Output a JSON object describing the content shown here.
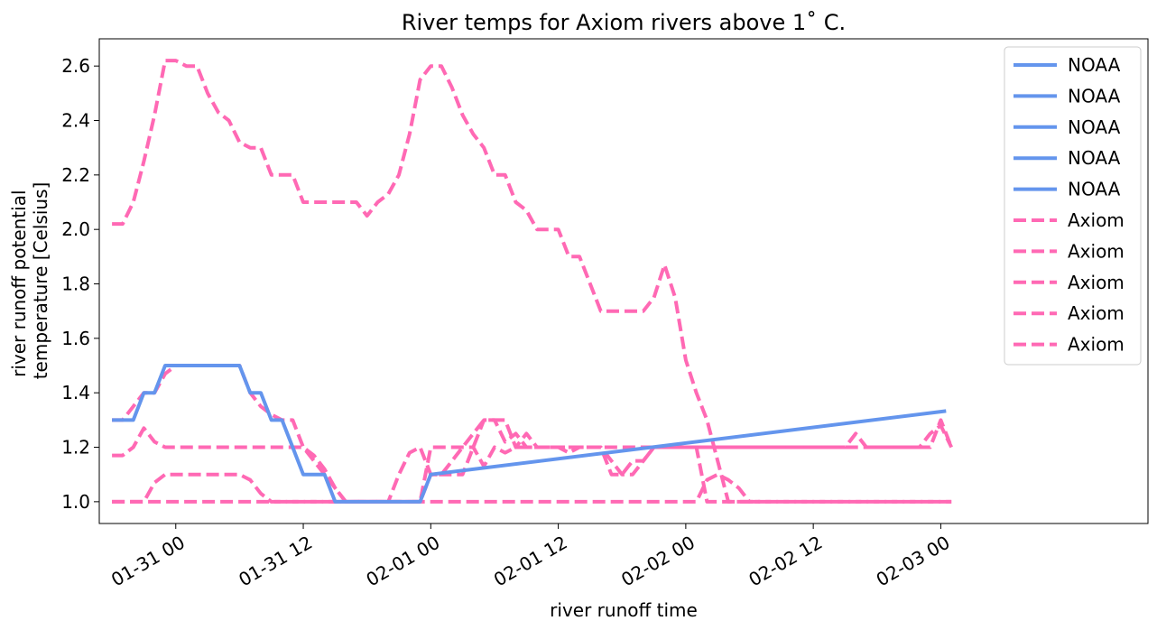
{
  "chart_data": {
    "type": "line",
    "title": "River temps for Axiom rivers above 1˚ C.",
    "xlabel": "river runoff time",
    "ylabel_lines": [
      "river runoff potential",
      "temperature [Celsius]"
    ],
    "x_unit": "hours since 01-31 00",
    "xlim": [
      -7.2,
      91.5
    ],
    "ylim": [
      0.92,
      2.7
    ],
    "x_ticks": [
      {
        "x": 0,
        "label": "01-31 00"
      },
      {
        "x": 12,
        "label": "01-31 12"
      },
      {
        "x": 24,
        "label": "02-01 00"
      },
      {
        "x": 36,
        "label": "02-01 12"
      },
      {
        "x": 48,
        "label": "02-02 00"
      },
      {
        "x": 60,
        "label": "02-02 12"
      },
      {
        "x": 72,
        "label": "02-03 00"
      }
    ],
    "y_ticks": [
      1.0,
      1.2,
      1.4,
      1.6,
      1.8,
      2.0,
      2.2,
      2.4,
      2.6
    ],
    "y_tick_labels": [
      "1.0",
      "1.2",
      "1.4",
      "1.6",
      "1.8",
      "2.0",
      "2.2",
      "2.4",
      "2.6"
    ],
    "grid": false,
    "legend_position": "upper right",
    "colors": {
      "NOAA": "#6495ED",
      "Axiom": "#FF69B4"
    },
    "series": [
      {
        "name": "NOAA",
        "style": "solid",
        "color": "#6495ED",
        "x": [
          -6,
          -4,
          -3,
          -2,
          -1,
          6,
          7,
          8,
          9,
          10,
          11,
          12,
          13,
          14,
          15,
          16,
          20,
          22,
          23,
          24,
          72.5
        ],
        "y": [
          1.3,
          1.3,
          1.4,
          1.4,
          1.5,
          1.5,
          1.4,
          1.4,
          1.3,
          1.3,
          1.2,
          1.1,
          1.1,
          1.1,
          1.0,
          1.0,
          1.0,
          1.0,
          1.0,
          1.1,
          1.333
        ]
      },
      {
        "name": "NOAA",
        "style": "solid",
        "color": "#6495ED",
        "x": [],
        "y": []
      },
      {
        "name": "NOAA",
        "style": "solid",
        "color": "#6495ED",
        "x": [],
        "y": []
      },
      {
        "name": "NOAA",
        "style": "solid",
        "color": "#6495ED",
        "x": [],
        "y": []
      },
      {
        "name": "NOAA",
        "style": "solid",
        "color": "#6495ED",
        "x": [],
        "y": []
      },
      {
        "name": "Axiom",
        "style": "dashed",
        "color": "#FF69B4",
        "x": [
          -6,
          -5,
          -4,
          -3,
          -2,
          -1,
          0,
          1,
          2,
          3,
          4,
          5,
          6,
          7,
          8,
          9,
          10,
          11,
          12,
          13,
          14,
          15,
          16,
          17,
          18,
          19,
          20,
          21,
          22,
          23,
          24,
          25,
          26,
          27,
          28,
          29,
          30,
          31,
          32,
          33,
          34,
          35,
          36,
          37,
          38,
          39,
          40,
          41,
          42,
          43,
          44,
          45,
          46,
          47,
          48,
          49,
          50,
          51,
          52,
          53,
          54,
          55
        ],
        "y": [
          2.02,
          2.02,
          2.1,
          2.25,
          2.42,
          2.62,
          2.62,
          2.6,
          2.6,
          2.5,
          2.43,
          2.4,
          2.32,
          2.3,
          2.3,
          2.2,
          2.2,
          2.2,
          2.1,
          2.1,
          2.1,
          2.1,
          2.1,
          2.1,
          2.05,
          2.1,
          2.13,
          2.2,
          2.35,
          2.55,
          2.6,
          2.6,
          2.52,
          2.42,
          2.35,
          2.3,
          2.2,
          2.2,
          2.1,
          2.07,
          2.0,
          2.0,
          2.0,
          1.9,
          1.9,
          1.8,
          1.7,
          1.7,
          1.7,
          1.7,
          1.7,
          1.75,
          1.87,
          1.75,
          1.52,
          1.4,
          1.3,
          1.15,
          1.0,
          1.0,
          1.0,
          1.0
        ]
      },
      {
        "name": "Axiom",
        "style": "dashed",
        "color": "#FF69B4",
        "x": [
          -6,
          -5,
          -4,
          -3,
          -2,
          -1,
          0,
          1,
          2,
          3,
          4,
          5,
          6,
          7,
          8,
          9,
          10,
          11,
          12,
          13,
          14,
          15,
          16,
          17,
          18,
          19,
          20,
          21,
          22,
          23,
          24,
          25,
          26,
          27,
          28,
          29,
          30,
          31,
          32,
          33,
          34,
          35,
          36,
          37,
          38,
          39,
          40,
          41,
          42,
          43,
          44,
          45,
          46,
          47,
          48,
          49,
          50,
          51,
          52,
          53,
          54,
          55,
          56,
          57,
          58,
          59,
          60,
          61,
          62,
          63,
          64,
          65,
          66,
          67,
          68,
          69,
          70,
          71,
          72,
          73
        ],
        "y": [
          1.3,
          1.3,
          1.35,
          1.4,
          1.4,
          1.47,
          1.5,
          1.5,
          1.5,
          1.5,
          1.5,
          1.5,
          1.5,
          1.4,
          1.35,
          1.32,
          1.3,
          1.3,
          1.2,
          1.15,
          1.1,
          1.05,
          1.0,
          1.0,
          1.0,
          1.0,
          1.0,
          1.0,
          1.0,
          1.0,
          1.1,
          1.1,
          1.15,
          1.2,
          1.25,
          1.3,
          1.3,
          1.22,
          1.25,
          1.2,
          1.2,
          1.2,
          1.2,
          1.18,
          1.2,
          1.2,
          1.2,
          1.15,
          1.1,
          1.1,
          1.15,
          1.2,
          1.2,
          1.2,
          1.2,
          1.2,
          1.2,
          1.2,
          1.2,
          1.2,
          1.2,
          1.2,
          1.2,
          1.2,
          1.2,
          1.2,
          1.2,
          1.2,
          1.2,
          1.2,
          1.25,
          1.2,
          1.2,
          1.2,
          1.2,
          1.2,
          1.2,
          1.25,
          1.28,
          1.2
        ]
      },
      {
        "name": "Axiom",
        "style": "dashed",
        "color": "#FF69B4",
        "x": [
          -6,
          -5,
          -4,
          -3,
          -2,
          -1,
          0,
          1,
          2,
          3,
          4,
          5,
          6,
          7,
          8,
          9,
          10,
          11,
          12,
          13,
          14,
          15,
          16,
          17,
          18,
          19,
          20,
          21,
          22,
          23,
          24,
          25,
          26,
          27,
          28,
          29,
          30,
          31,
          32,
          33,
          34,
          35,
          36,
          37,
          38,
          39,
          40,
          41,
          42,
          43,
          44,
          45,
          46,
          47,
          48,
          49,
          50,
          51,
          52,
          53,
          54,
          55,
          56,
          57,
          58,
          59,
          60,
          61,
          62,
          63,
          64,
          65,
          66,
          67,
          68,
          69,
          70,
          71,
          72,
          73
        ],
        "y": [
          1.17,
          1.17,
          1.2,
          1.27,
          1.22,
          1.2,
          1.2,
          1.2,
          1.2,
          1.2,
          1.2,
          1.2,
          1.2,
          1.2,
          1.2,
          1.2,
          1.2,
          1.2,
          1.2,
          1.17,
          1.12,
          1.05,
          1.0,
          1.0,
          1.0,
          1.0,
          1.0,
          1.0,
          1.0,
          1.0,
          1.2,
          1.2,
          1.2,
          1.2,
          1.2,
          1.13,
          1.2,
          1.18,
          1.2,
          1.2,
          1.2,
          1.2,
          1.2,
          1.2,
          1.2,
          1.2,
          1.2,
          1.1,
          1.1,
          1.15,
          1.15,
          1.2,
          1.2,
          1.2,
          1.2,
          1.2,
          1.2,
          1.2,
          1.2,
          1.2,
          1.2,
          1.2,
          1.2,
          1.2,
          1.2,
          1.2,
          1.2,
          1.2,
          1.2,
          1.2,
          1.2,
          1.2,
          1.2,
          1.2,
          1.2,
          1.2,
          1.2,
          1.2,
          1.3,
          1.2
        ]
      },
      {
        "name": "Axiom",
        "style": "dashed",
        "color": "#FF69B4",
        "x": [
          -6,
          -5,
          -4,
          -3,
          -2,
          -1,
          0,
          1,
          2,
          3,
          4,
          5,
          6,
          7,
          8,
          9,
          10,
          11,
          12,
          13,
          14,
          15,
          16,
          17,
          18,
          19,
          20,
          21,
          22,
          23,
          24,
          25,
          26,
          27,
          28,
          29,
          30,
          31,
          32,
          33,
          34,
          35,
          36,
          37,
          38,
          39,
          40,
          41,
          42,
          43,
          44,
          45,
          46,
          47,
          48,
          49,
          50,
          51,
          52,
          53,
          54,
          55,
          56,
          57,
          58,
          59,
          60,
          61,
          62,
          63,
          64,
          65,
          66,
          67,
          68,
          69,
          70,
          71,
          72,
          73
        ],
        "y": [
          1.0,
          1.0,
          1.0,
          1.0,
          1.07,
          1.1,
          1.1,
          1.1,
          1.1,
          1.1,
          1.1,
          1.1,
          1.1,
          1.08,
          1.03,
          1.0,
          1.0,
          1.0,
          1.0,
          1.0,
          1.0,
          1.0,
          1.0,
          1.0,
          1.0,
          1.0,
          1.0,
          1.0,
          1.0,
          1.0,
          1.0,
          1.0,
          1.0,
          1.0,
          1.0,
          1.0,
          1.0,
          1.0,
          1.0,
          1.0,
          1.0,
          1.0,
          1.0,
          1.0,
          1.0,
          1.0,
          1.0,
          1.0,
          1.0,
          1.0,
          1.0,
          1.0,
          1.0,
          1.0,
          1.0,
          1.0,
          1.08,
          1.1,
          1.08,
          1.05,
          1.0,
          1.0,
          1.0,
          1.0,
          1.0,
          1.0,
          1.0,
          1.0,
          1.0,
          1.0,
          1.0,
          1.0,
          1.0,
          1.0,
          1.0,
          1.0,
          1.0,
          1.0,
          1.0,
          1.0
        ]
      },
      {
        "name": "Axiom",
        "style": "dashed",
        "color": "#FF69B4",
        "x": [
          -6,
          -5,
          -4,
          -3,
          -2,
          -1,
          0,
          1,
          2,
          3,
          4,
          5,
          6,
          7,
          8,
          9,
          10,
          11,
          12,
          13,
          14,
          15,
          16,
          17,
          18,
          19,
          20,
          21,
          22,
          23,
          24,
          25,
          26,
          27,
          28,
          29,
          30,
          31,
          32,
          33,
          34,
          35,
          36,
          37,
          38,
          39,
          40,
          41,
          42,
          43,
          44,
          45,
          46,
          47,
          48,
          49,
          50,
          51,
          52,
          53,
          54,
          55,
          56,
          57,
          58,
          59,
          60,
          61,
          62,
          63,
          64,
          65,
          66,
          67,
          68,
          69,
          70,
          71,
          72,
          73
        ],
        "y": [
          1.0,
          1.0,
          1.0,
          1.0,
          1.0,
          1.0,
          1.0,
          1.0,
          1.0,
          1.0,
          1.0,
          1.0,
          1.0,
          1.0,
          1.0,
          1.0,
          1.0,
          1.0,
          1.0,
          1.0,
          1.0,
          1.0,
          1.0,
          1.0,
          1.0,
          1.0,
          1.0,
          1.1,
          1.18,
          1.2,
          1.1,
          1.1,
          1.1,
          1.1,
          1.2,
          1.3,
          1.3,
          1.3,
          1.2,
          1.25,
          1.2,
          1.2,
          1.2,
          1.2,
          1.2,
          1.2,
          1.2,
          1.2,
          1.2,
          1.2,
          1.2,
          1.2,
          1.2,
          1.2,
          1.2,
          1.2,
          1.0,
          1.0,
          1.0,
          1.0,
          1.0,
          1.0,
          1.0,
          1.0,
          1.0,
          1.0,
          1.0,
          1.0,
          1.0,
          1.0,
          1.0,
          1.0,
          1.0,
          1.0,
          1.0,
          1.0,
          1.0,
          1.0,
          1.0,
          1.0
        ]
      }
    ]
  }
}
